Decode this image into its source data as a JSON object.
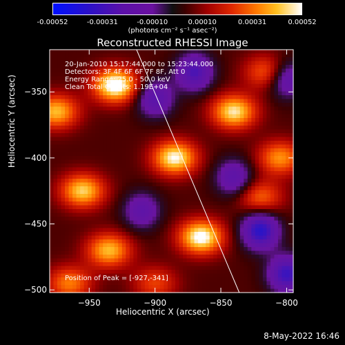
{
  "colorbar": {
    "ticks": [
      "-0.00052",
      "-0.00031",
      "-0.00010",
      "0.00010",
      "0.00031",
      "0.00052"
    ],
    "unit_label": "(photons cm⁻² s⁻¹ asec⁻²)"
  },
  "title": "Reconstructed RHESSI Image",
  "overlay": {
    "line1": "20-Jan-2010 15:17:44.000 to 15:23:44.000",
    "line2": "Detectors: 3F 4F 6F 6F 7F 8F, Att 0",
    "line3": "Energy Range: 25.0 - 50.0 keV",
    "line4": "Clean    Total Counts: 1.19E+04",
    "peak": "Position of Peak = [-927,-341]"
  },
  "footer": {
    "timestamp": "8-May-2022 16:46"
  },
  "chart_data": {
    "type": "heatmap",
    "title": "Reconstructed RHESSI Image",
    "xlabel": "Heliocentric X (arcsec)",
    "ylabel": "Heliocentric Y (arcsec)",
    "xlim": [
      -980,
      -795
    ],
    "ylim": [
      -502,
      -318
    ],
    "xticks": [
      -950,
      -900,
      -850,
      -800
    ],
    "yticks": [
      -350,
      -400,
      -450,
      -500
    ],
    "colorbar_range": [
      -0.00052,
      0.00052
    ],
    "peak_position": [
      -927,
      -341
    ],
    "limb_line": {
      "x": [
        -914,
        -836
      ],
      "y": [
        -318,
        -502
      ]
    },
    "sources": [
      {
        "x": -930,
        "y": -345,
        "level": 0.95
      },
      {
        "x": -885,
        "y": -400,
        "level": 0.85
      },
      {
        "x": -955,
        "y": -425,
        "level": 0.75
      },
      {
        "x": -865,
        "y": -460,
        "level": 0.9
      },
      {
        "x": -935,
        "y": -470,
        "level": 0.7
      },
      {
        "x": -840,
        "y": -365,
        "level": 0.8
      },
      {
        "x": -975,
        "y": -365,
        "level": 0.7
      },
      {
        "x": -805,
        "y": -400,
        "level": 0.6
      },
      {
        "x": -820,
        "y": -430,
        "level": 0.5
      },
      {
        "x": -965,
        "y": -495,
        "level": 0.55
      },
      {
        "x": -900,
        "y": -495,
        "level": 0.4
      },
      {
        "x": -815,
        "y": -335,
        "level": 0.5
      }
    ],
    "sinks": [
      {
        "x": -820,
        "y": -455,
        "level": -0.9
      },
      {
        "x": -870,
        "y": -335,
        "level": -0.7
      },
      {
        "x": -800,
        "y": -488,
        "level": -0.8
      },
      {
        "x": -900,
        "y": -355,
        "level": -0.6
      },
      {
        "x": -840,
        "y": -415,
        "level": -0.55
      },
      {
        "x": -910,
        "y": -440,
        "level": -0.5
      },
      {
        "x": -800,
        "y": -340,
        "level": -0.6
      }
    ]
  }
}
